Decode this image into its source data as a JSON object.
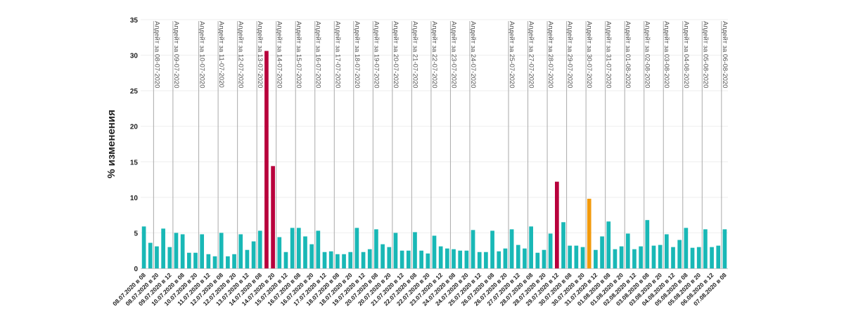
{
  "chart_data": {
    "type": "bar",
    "ylabel": "% изменения",
    "ylim": [
      0,
      35
    ],
    "yticks": [
      0,
      5,
      10,
      15,
      20,
      25,
      30,
      35
    ],
    "grid": true,
    "colors": {
      "normal": "#19b8b6",
      "high": "#b8003c",
      "medium": "#f29a0c",
      "annotation_line": "#aaaaaa",
      "grid": "#eeeeee",
      "text": "#222222"
    },
    "categories": [
      "08.07.2020 в 08",
      "08.07.2020 в 12",
      "08.07.2020 в 20",
      "09.07.2020 в 08",
      "09.07.2020 в 12",
      "09.07.2020 в 20",
      "10.07.2020 в 08",
      "10.07.2020 в 12",
      "10.07.2020 в 20",
      "11.07.2020 в 08",
      "11.07.2020 в 12",
      "11.07.2020 в 20",
      "12.07.2020 в 08",
      "12.07.2020 в 12",
      "12.07.2020 в 20",
      "13.07.2020 в 08",
      "13.07.2020 в 12",
      "13.07.2020 в 20",
      "14.07.2020 в 08",
      "14.07.2020 в 12",
      "14.07.2020 в 20",
      "15.07.2020 в 08",
      "15.07.2020 в 12",
      "15.07.2020 в 20",
      "16.07.2020 в 08",
      "16.07.2020 в 12",
      "16.07.2020 в 20",
      "17.07.2020 в 08",
      "17.07.2020 в 12",
      "17.07.2020 в 20",
      "18.07.2020 в 08",
      "18.07.2020 в 12",
      "18.07.2020 в 20",
      "19.07.2020 в 08",
      "19.07.2020 в 12",
      "19.07.2020 в 20",
      "20.07.2020 в 08",
      "20.07.2020 в 12",
      "20.07.2020 в 20",
      "21.07.2020 в 08",
      "21.07.2020 в 12",
      "21.07.2020 в 20",
      "22.07.2020 в 08",
      "22.07.2020 в 12",
      "22.07.2020 в 20",
      "23.07.2020 в 08",
      "23.07.2020 в 12",
      "23.07.2020 в 20",
      "24.07.2020 в 08",
      "24.07.2020 в 12",
      "24.07.2020 в 20",
      "25.07.2020 в 08",
      "25.07.2020 в 12",
      "25.07.2020 в 20",
      "26.07.2020 в 08",
      "26.07.2020 в 12",
      "26.07.2020 в 20",
      "27.07.2020 в 08",
      "27.07.2020 в 12",
      "27.07.2020 в 20",
      "28.07.2020 в 08",
      "28.07.2020 в 12",
      "28.07.2020 в 20",
      "29.07.2020 в 08",
      "29.07.2020 в 12",
      "29.07.2020 в 20",
      "30.07.2020 в 08",
      "30.07.2020 в 12",
      "30.07.2020 в 20",
      "31.07.2020 в 08",
      "31.07.2020 в 12",
      "31.07.2020 в 20",
      "01.08.2020 в 08",
      "01.08.2020 в 12",
      "01.08.2020 в 20",
      "02.08.2020 в 08",
      "02.08.2020 в 12",
      "02.08.2020 в 20",
      "03.08.2020 в 08",
      "03.08.2020 в 12",
      "03.08.2020 в 20",
      "04.08.2020 в 08",
      "04.08.2020 в 12",
      "04.08.2020 в 20",
      "05.08.2020 в 08",
      "05.08.2020 в 12",
      "05.08.2020 в 20",
      "06.08.2020 в 08",
      "06.08.2020 в 12",
      "06.08.2020 в 20",
      "07.08.2020 в 08"
    ],
    "values": [
      5.9,
      3.6,
      3.1,
      5.6,
      3.0,
      5.0,
      4.8,
      2.2,
      2.2,
      4.8,
      2.0,
      1.7,
      5.0,
      1.7,
      2.0,
      4.8,
      2.6,
      3.8,
      5.3,
      30.6,
      14.4,
      4.4,
      2.3,
      5.7,
      5.7,
      4.5,
      3.4,
      5.3,
      2.3,
      2.4,
      2.0,
      2.0,
      2.3,
      5.7,
      2.3,
      2.7,
      5.5,
      3.4,
      3.0,
      5.0,
      2.5,
      2.5,
      5.1,
      2.5,
      2.1,
      4.6,
      3.1,
      2.8,
      2.7,
      2.5,
      2.5,
      5.4,
      2.3,
      2.3,
      5.3,
      2.4,
      2.8,
      5.5,
      3.3,
      2.8,
      5.9,
      2.2,
      2.6,
      4.9,
      12.2,
      6.5,
      3.2,
      3.2,
      3.0,
      9.8,
      2.6,
      4.5,
      6.6,
      2.7,
      3.1,
      4.9,
      2.7,
      3.1,
      6.8,
      3.2,
      3.3,
      4.8,
      3.0,
      4.0,
      5.7,
      2.9,
      3.0,
      5.5,
      3.0,
      3.2,
      5.5
    ],
    "bar_colors": {
      "19": "high",
      "20": "high",
      "64": "high",
      "69": "medium"
    },
    "annotations": [
      {
        "label": "Апдейт за 08-07-2020",
        "bar": 2
      },
      {
        "label": "Апдейт за 09-07-2020",
        "bar": 5
      },
      {
        "label": "Апдейт за 10-07-2020",
        "bar": 9
      },
      {
        "label": "Апдейт за 11-07-2020",
        "bar": 12
      },
      {
        "label": "Апдейт за 12-07-2020",
        "bar": 15
      },
      {
        "label": "Апдейт за 13-07-2020",
        "bar": 18
      },
      {
        "label": "Апдейт за 14-07-2020",
        "bar": 21
      },
      {
        "label": "Апдейт за 15-07-2020",
        "bar": 24
      },
      {
        "label": "Апдейт за 16-07-2020",
        "bar": 27
      },
      {
        "label": "Апдейт за 17-07-2020",
        "bar": 30
      },
      {
        "label": "Апдейт за 18-07-2020",
        "bar": 33
      },
      {
        "label": "Апдейт за 19-07-2020",
        "bar": 36
      },
      {
        "label": "Апдейт за 20-07-2020",
        "bar": 39
      },
      {
        "label": "Апдейт за 21-07-2020",
        "bar": 42
      },
      {
        "label": "Апдейт за 22-07-2020",
        "bar": 45
      },
      {
        "label": "Апдейт за 23-07-2020",
        "bar": 48
      },
      {
        "label": "Апдейт за 24-07-2020",
        "bar": 51
      },
      {
        "label": "Апдейт за 25-07-2020",
        "bar": 57
      },
      {
        "label": "Апдейт за 27-07-2020",
        "bar": 60
      },
      {
        "label": "Апдейт за 28-07-2020",
        "bar": 63
      },
      {
        "label": "Апдейт за 29-07-2020",
        "bar": 66
      },
      {
        "label": "Апдейт за 30-07-2020",
        "bar": 69
      },
      {
        "label": "Апдейт за 31-07-2020",
        "bar": 72
      },
      {
        "label": "Апдейт за 01-08-2020",
        "bar": 75
      },
      {
        "label": "Апдейт за 02-08-2020",
        "bar": 78
      },
      {
        "label": "Апдейт за 03-08-2020",
        "bar": 81
      },
      {
        "label": "Апдейт за 04-08-2020",
        "bar": 84
      },
      {
        "label": "Апдейт за 05-08-2020",
        "bar": 87
      },
      {
        "label": "Апдейт за 06-08-2020",
        "bar": 90
      }
    ]
  }
}
